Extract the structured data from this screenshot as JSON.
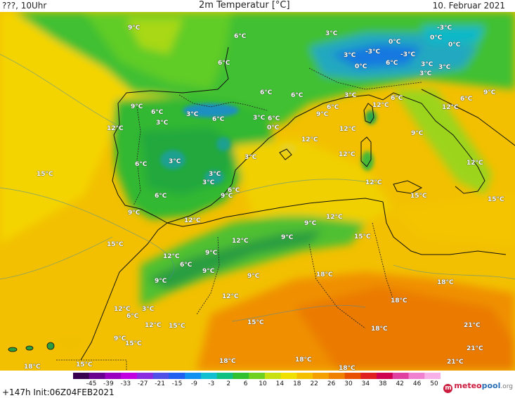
{
  "header": {
    "left": "???, 10Uhr",
    "center": "2m Temperatur [°C]",
    "right": "10. Februar 2021"
  },
  "footer": {
    "run_info": "+147h  Init:06Z04FEB2021",
    "logo_text_1": "meteo",
    "logo_text_2": "pool",
    "logo_text_3": ".org",
    "colorbar_ticks": [
      "-45",
      "-39",
      "-33",
      "-27",
      "-21",
      "-15",
      "-9",
      "-3",
      "2",
      "6",
      "10",
      "14",
      "18",
      "22",
      "26",
      "30",
      "34",
      "38",
      "42",
      "46",
      "50"
    ],
    "colorbar_colors": [
      "#3a0050",
      "#6a0090",
      "#9b00c0",
      "#c000e0",
      "#8a2be2",
      "#5050e8",
      "#2060f0",
      "#1090f0",
      "#10c0d0",
      "#10c080",
      "#30c030",
      "#70d020",
      "#c8e010",
      "#f0e000",
      "#f4c000",
      "#f4a000",
      "#f08000",
      "#e85000",
      "#e02020",
      "#d00050",
      "#e040a0",
      "#f080d0",
      "#f8b0e8"
    ]
  },
  "labels": [
    {
      "t": "9°C"
    },
    {
      "t": "6°C"
    },
    {
      "t": "3°C"
    },
    {
      "t": "0°C"
    },
    {
      "t": "-3°C"
    },
    {
      "t": "0°C"
    },
    {
      "t": "3°C"
    },
    {
      "t": "-3°C"
    },
    {
      "t": "-3°C"
    },
    {
      "t": "0°C"
    },
    {
      "t": "6°C"
    },
    {
      "t": "3°C"
    },
    {
      "t": "9°C"
    },
    {
      "t": "0°C"
    },
    {
      "t": "6°C"
    },
    {
      "t": "6°C"
    },
    {
      "t": "6°C"
    },
    {
      "t": "3°C"
    },
    {
      "t": "3°C"
    },
    {
      "t": "6°C"
    },
    {
      "t": "6°C"
    },
    {
      "t": "3°C"
    },
    {
      "t": "12°C"
    },
    {
      "t": "9°C"
    },
    {
      "t": "12°C"
    },
    {
      "t": "6°C"
    },
    {
      "t": "9°C"
    },
    {
      "t": "6°C"
    },
    {
      "t": "3°C"
    },
    {
      "t": "6°C"
    },
    {
      "t": "3°C"
    },
    {
      "t": "6°C"
    },
    {
      "t": "3°C"
    },
    {
      "t": "0°C"
    },
    {
      "t": "12°C"
    },
    {
      "t": "3°C"
    },
    {
      "t": "12°C"
    },
    {
      "t": "12°C"
    },
    {
      "t": "9°C"
    },
    {
      "t": "12°C"
    },
    {
      "t": "15°C"
    },
    {
      "t": "6°C"
    },
    {
      "t": "3°C"
    },
    {
      "t": "12°C"
    },
    {
      "t": "12°C"
    },
    {
      "t": "3°C"
    },
    {
      "t": "3°C"
    },
    {
      "t": "6°C"
    },
    {
      "t": "9°C"
    },
    {
      "t": "15°C"
    },
    {
      "t": "6°C"
    },
    {
      "t": "9°C"
    },
    {
      "t": "15°C"
    },
    {
      "t": "15°C"
    },
    {
      "t": "9°C"
    },
    {
      "t": "12°C"
    },
    {
      "t": "12°C"
    },
    {
      "t": "9°C"
    },
    {
      "t": "15°C"
    },
    {
      "t": "12°C"
    },
    {
      "t": "9°C"
    },
    {
      "t": "12°C"
    },
    {
      "t": "6°C"
    },
    {
      "t": "9°C"
    },
    {
      "t": "9°C"
    },
    {
      "t": "9°C"
    },
    {
      "t": "18°C"
    },
    {
      "t": "18°C"
    },
    {
      "t": "12°C"
    },
    {
      "t": "18°C"
    },
    {
      "t": "12°C"
    },
    {
      "t": "3°C"
    },
    {
      "t": "6°C"
    },
    {
      "t": "12°C"
    },
    {
      "t": "15°C"
    },
    {
      "t": "15°C"
    },
    {
      "t": "18°C"
    },
    {
      "t": "21°C"
    },
    {
      "t": "9°C"
    },
    {
      "t": "15°C"
    },
    {
      "t": "21°C"
    },
    {
      "t": "18°C"
    },
    {
      "t": "18°C"
    },
    {
      "t": "21°C"
    },
    {
      "t": "18°C"
    },
    {
      "t": "15°C"
    },
    {
      "t": "18°C"
    }
  ]
}
